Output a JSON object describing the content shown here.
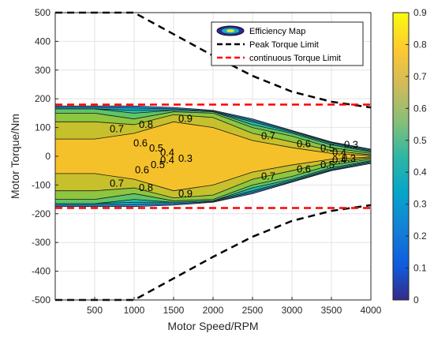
{
  "chart_data": {
    "type": "contour",
    "xlabel": "Motor Speed/RPM",
    "ylabel": "Motor Torque/Nm",
    "xlim": [
      0,
      4000
    ],
    "ylim": [
      -500,
      500
    ],
    "x_ticks": [
      "500",
      "1000",
      "1500",
      "2000",
      "2500",
      "3000",
      "3500",
      "4000"
    ],
    "x_tick_values": [
      500,
      1000,
      1500,
      2000,
      2500,
      3000,
      3500,
      4000
    ],
    "y_ticks": [
      "500",
      "400",
      "300",
      "200",
      "100",
      "0",
      "-100",
      "-200",
      "-300",
      "-400",
      "-500"
    ],
    "y_tick_values": [
      500,
      400,
      300,
      200,
      100,
      0,
      -100,
      -200,
      -300,
      -400,
      -500
    ],
    "grid": true,
    "legend_position": "top-right",
    "series": [
      {
        "name": "Efficiency Map",
        "kind": "filled-contour",
        "levels": [
          0.3,
          0.4,
          0.5,
          0.6,
          0.7,
          0.8,
          0.9
        ],
        "color": "#38a3df",
        "bands": [
          {
            "level": 0.3,
            "color": "#2f8ee8",
            "upper": [
              [
                0,
                175
              ],
              [
                500,
                175
              ],
              [
                1000,
                175
              ],
              [
                1500,
                170
              ],
              [
                2000,
                160
              ],
              [
                2500,
                130
              ],
              [
                3000,
                90
              ],
              [
                3500,
                50
              ],
              [
                4000,
                25
              ]
            ]
          },
          {
            "level": 0.4,
            "color": "#14b1c8",
            "upper": [
              [
                0,
                170
              ],
              [
                500,
                170
              ],
              [
                1000,
                168
              ],
              [
                1500,
                165
              ],
              [
                2000,
                158
              ],
              [
                2500,
                125
              ],
              [
                3000,
                88
              ],
              [
                3500,
                48
              ],
              [
                4000,
                22
              ]
            ]
          },
          {
            "level": 0.5,
            "color": "#24bda8",
            "upper": [
              [
                0,
                165
              ],
              [
                500,
                165
              ],
              [
                1000,
                160
              ],
              [
                1500,
                160
              ],
              [
                2000,
                155
              ],
              [
                2500,
                120
              ],
              [
                3000,
                84
              ],
              [
                3500,
                45
              ],
              [
                4000,
                18
              ]
            ]
          },
          {
            "level": 0.6,
            "color": "#5ec468",
            "upper": [
              [
                0,
                165
              ],
              [
                500,
                165
              ],
              [
                1000,
                150
              ],
              [
                1500,
                160
              ],
              [
                2000,
                155
              ],
              [
                2500,
                110
              ],
              [
                3000,
                80
              ],
              [
                3500,
                40
              ],
              [
                4000,
                15
              ]
            ]
          },
          {
            "level": 0.7,
            "color": "#8dc63f",
            "upper": [
              [
                0,
                150
              ],
              [
                500,
                150
              ],
              [
                1000,
                130
              ],
              [
                1500,
                155
              ],
              [
                2000,
                150
              ],
              [
                2500,
                100
              ],
              [
                3000,
                70
              ],
              [
                3500,
                30
              ],
              [
                4000,
                10
              ]
            ]
          },
          {
            "level": 0.8,
            "color": "#c6c02d",
            "upper": [
              [
                0,
                120
              ],
              [
                500,
                120
              ],
              [
                1000,
                110
              ],
              [
                1500,
                145
              ],
              [
                2000,
                135
              ],
              [
                2500,
                80
              ],
              [
                3000,
                50
              ],
              [
                3500,
                20
              ],
              [
                4000,
                5
              ]
            ]
          },
          {
            "level": 0.9,
            "color": "#f5c12b",
            "upper": [
              [
                0,
                60
              ],
              [
                500,
                60
              ],
              [
                1000,
                80
              ],
              [
                1500,
                120
              ],
              [
                2000,
                100
              ],
              [
                2500,
                55
              ],
              [
                3000,
                30
              ],
              [
                3500,
                10
              ],
              [
                4000,
                2
              ]
            ]
          }
        ]
      },
      {
        "name": "Peak Torque Limit",
        "kind": "line",
        "style": "dashed",
        "color": "#000000",
        "upper": {
          "x": [
            0,
            500,
            1000,
            1500,
            2000,
            2500,
            3000,
            3500,
            4000
          ],
          "y": [
            500,
            500,
            500,
            425,
            350,
            280,
            225,
            190,
            170
          ]
        },
        "lower": {
          "x": [
            0,
            500,
            1000,
            1500,
            2000,
            2500,
            3000,
            3500,
            4000
          ],
          "y": [
            -500,
            -500,
            -500,
            -425,
            -350,
            -280,
            -225,
            -190,
            -170
          ]
        }
      },
      {
        "name": "continuous Torque Limit",
        "kind": "line",
        "style": "dashed",
        "color": "#ff0000",
        "upper": {
          "x": [
            0,
            4000
          ],
          "y": [
            180,
            180
          ]
        },
        "lower": {
          "x": [
            0,
            4000
          ],
          "y": [
            -180,
            -180
          ]
        }
      }
    ],
    "contour_labels": [
      {
        "text": "0.9",
        "x": 1650,
        "y": 130
      },
      {
        "text": "0.8",
        "x": 1150,
        "y": 110
      },
      {
        "text": "0.7",
        "x": 780,
        "y": 95
      },
      {
        "text": "0.7",
        "x": 2700,
        "y": 70
      },
      {
        "text": "0.6",
        "x": 1080,
        "y": 45
      },
      {
        "text": "0.6",
        "x": 3150,
        "y": 42
      },
      {
        "text": "0.5",
        "x": 1280,
        "y": 28
      },
      {
        "text": "0.5",
        "x": 3450,
        "y": 28
      },
      {
        "text": "0.4",
        "x": 1420,
        "y": 12
      },
      {
        "text": "0.4",
        "x": 3600,
        "y": 12
      },
      {
        "text": "0.3",
        "x": 1650,
        "y": -8
      },
      {
        "text": "0.3",
        "x": 3720,
        "y": -8
      },
      {
        "text": "0.6",
        "x": 1100,
        "y": -48
      },
      {
        "text": "0.6",
        "x": 3150,
        "y": -45
      },
      {
        "text": "0.5",
        "x": 1300,
        "y": -30
      },
      {
        "text": "0.5",
        "x": 3450,
        "y": -30
      },
      {
        "text": "0.4",
        "x": 1420,
        "y": -14
      },
      {
        "text": "0.4",
        "x": 3600,
        "y": -14
      },
      {
        "text": "0.7",
        "x": 2700,
        "y": -70
      },
      {
        "text": "0.7",
        "x": 780,
        "y": -95
      },
      {
        "text": "0.8",
        "x": 1150,
        "y": -110
      },
      {
        "text": "0.9",
        "x": 1650,
        "y": -130
      },
      {
        "text": "0.3",
        "x": 3750,
        "y": 40
      }
    ],
    "colorbar": {
      "ticks": [
        "0",
        "0.1",
        "0.2",
        "0.3",
        "0.4",
        "0.5",
        "0.6",
        "0.7",
        "0.8",
        "0.9"
      ],
      "tick_values": [
        0,
        0.1,
        0.2,
        0.3,
        0.4,
        0.5,
        0.6,
        0.7,
        0.8,
        0.9
      ],
      "lim": [
        0,
        0.9
      ],
      "colormap": "parula"
    }
  }
}
